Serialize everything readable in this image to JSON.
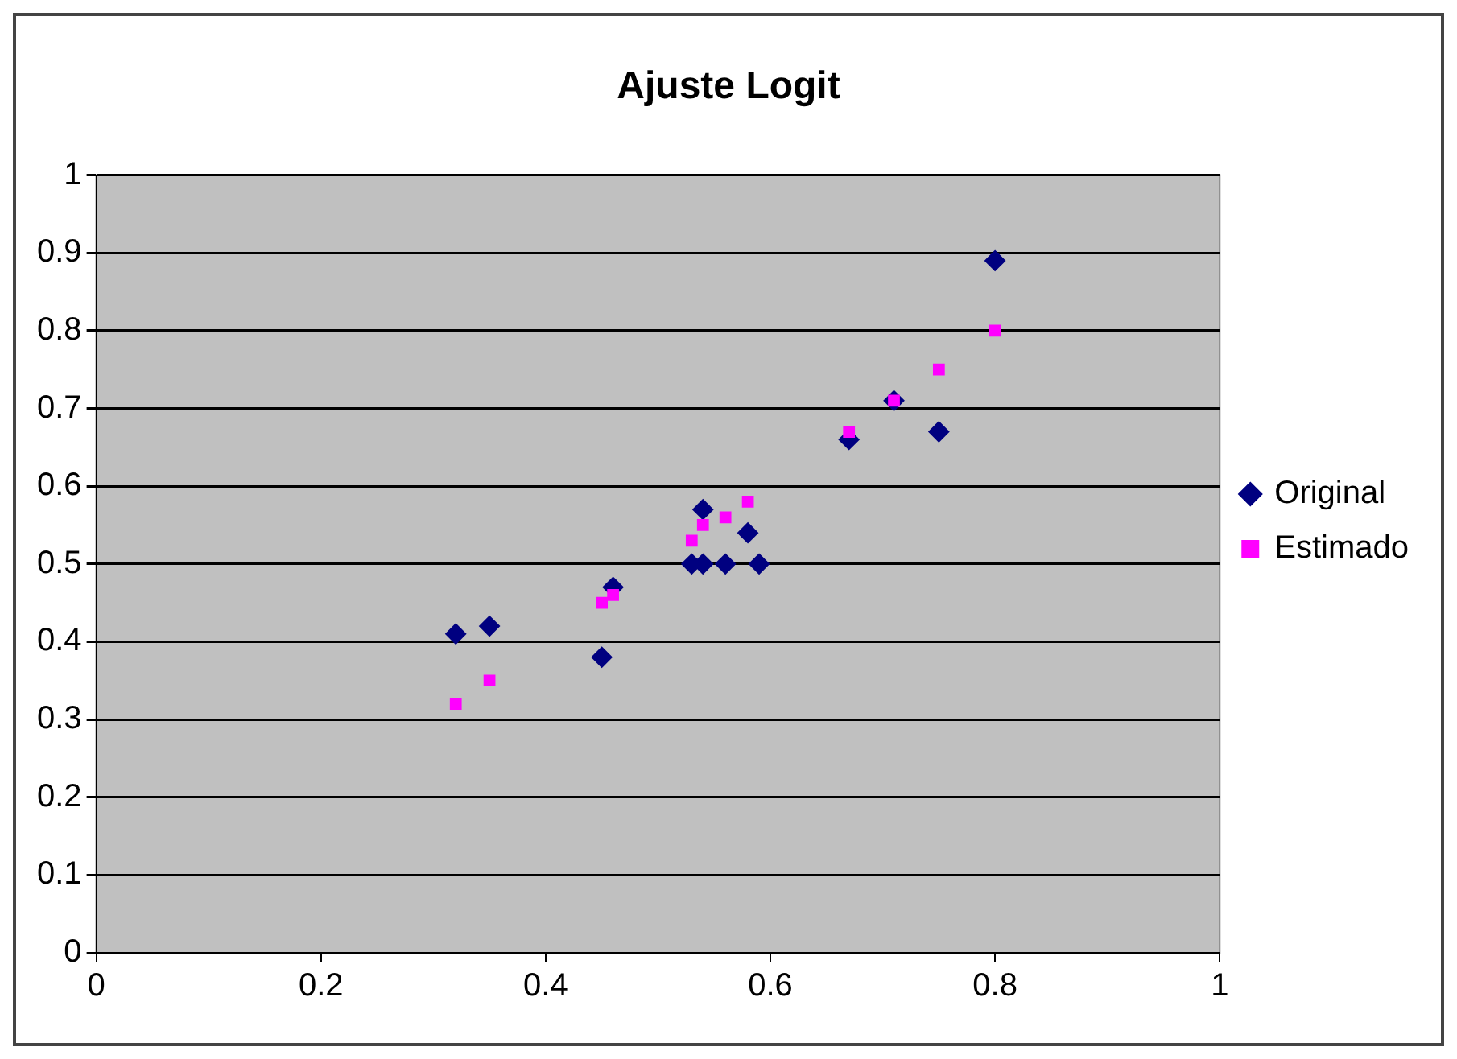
{
  "chart_data": {
    "type": "scatter",
    "title": "Ajuste Logit",
    "xlim": [
      0,
      1
    ],
    "xticks": [
      0,
      0.2,
      0.4,
      0.6,
      0.8,
      1
    ],
    "ylim": [
      0,
      1
    ],
    "yticks": [
      0,
      0.1,
      0.2,
      0.3,
      0.4,
      0.5,
      0.6,
      0.7,
      0.8,
      0.9,
      1
    ],
    "grid": "y",
    "legend": "right",
    "series": [
      {
        "name": "Original",
        "color": "#000080",
        "marker": "diamond",
        "x": [
          0.32,
          0.35,
          0.45,
          0.46,
          0.53,
          0.54,
          0.56,
          0.59,
          0.58,
          0.54,
          0.67,
          0.71,
          0.75,
          0.8
        ],
        "values": [
          0.41,
          0.42,
          0.38,
          0.47,
          0.5,
          0.5,
          0.5,
          0.5,
          0.54,
          0.57,
          0.66,
          0.71,
          0.67,
          0.89
        ]
      },
      {
        "name": "Estimado",
        "color": "#ff00ff",
        "marker": "square",
        "x": [
          0.32,
          0.35,
          0.45,
          0.46,
          0.53,
          0.54,
          0.56,
          0.58,
          0.67,
          0.71,
          0.75,
          0.8
        ],
        "values": [
          0.32,
          0.35,
          0.45,
          0.46,
          0.53,
          0.55,
          0.56,
          0.58,
          0.67,
          0.71,
          0.75,
          0.8
        ]
      }
    ]
  }
}
